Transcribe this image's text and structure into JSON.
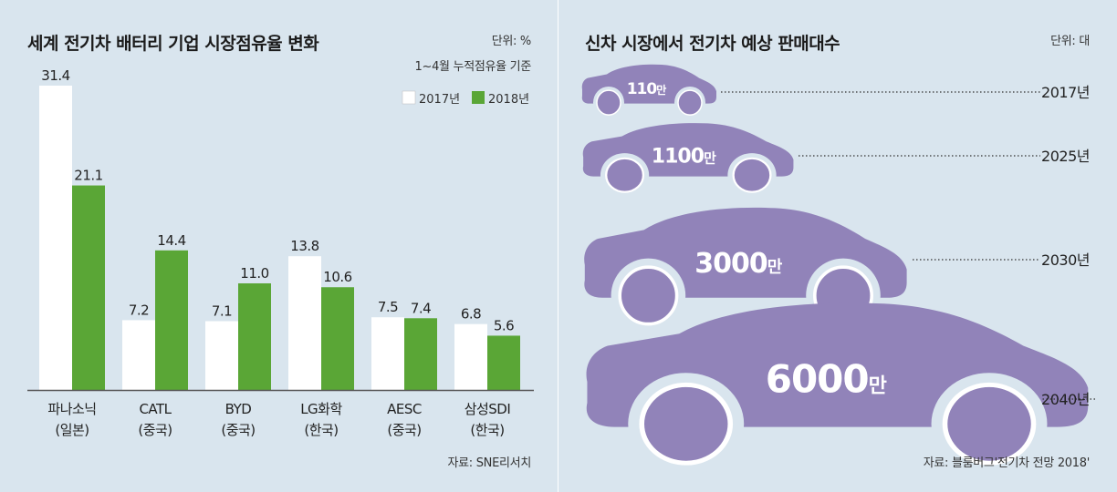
{
  "left": {
    "title": "세계 전기차 배터리 기업 시장점유율 변화",
    "unit": "단위: %",
    "note": "1~4월 누적점유율 기준",
    "source": "자료: SNE리서치"
  },
  "right": {
    "title": "신차 시장에서 전기차 예상 판매대수",
    "unit": "단위: 대",
    "source": "자료: 블룸버그'전기차 전망 2018'"
  },
  "colors": {
    "series_2017": "#ffffff",
    "series_2018": "#5aa636",
    "car": "#9183b9",
    "bg": "#d9e5ee"
  },
  "chart_data": [
    {
      "type": "bar",
      "title": "세계 전기차 배터리 기업 시장점유율 변화",
      "unit": "단위: %",
      "categories": [
        {
          "name": "파나소닉",
          "country": "(일본)"
        },
        {
          "name": "CATL",
          "country": "(중국)"
        },
        {
          "name": "BYD",
          "country": "(중국)"
        },
        {
          "name": "LG화학",
          "country": "(한국)"
        },
        {
          "name": "AESC",
          "country": "(중국)"
        },
        {
          "name": "삼성SDI",
          "country": "(한국)"
        }
      ],
      "series": [
        {
          "name": "2017년",
          "color": "#ffffff",
          "values": [
            31.4,
            7.2,
            7.1,
            13.8,
            7.5,
            6.8
          ],
          "labels": [
            "31.4",
            "7.2",
            "7.1",
            "13.8",
            "7.5",
            "6.8"
          ]
        },
        {
          "name": "2018년",
          "color": "#5aa636",
          "values": [
            21.1,
            14.4,
            11.0,
            10.6,
            7.4,
            5.6
          ],
          "labels": [
            "21.1",
            "14.4",
            "11.0",
            "10.6",
            "7.4",
            "5.6"
          ]
        }
      ],
      "ylim": [
        0,
        31.4
      ],
      "legend": "top-right"
    },
    {
      "type": "pictogram",
      "title": "신차 시장에서 전기차 예상 판매대수",
      "unit": "단위: 대",
      "items": [
        {
          "year": "2017년",
          "label": "110",
          "suffix": "만",
          "value": 110
        },
        {
          "year": "2025년",
          "label": "1100",
          "suffix": "만",
          "value": 1100
        },
        {
          "year": "2030년",
          "label": "3000",
          "suffix": "만",
          "value": 3000
        },
        {
          "year": "2040년",
          "label": "6000",
          "suffix": "만",
          "value": 6000
        }
      ]
    }
  ]
}
